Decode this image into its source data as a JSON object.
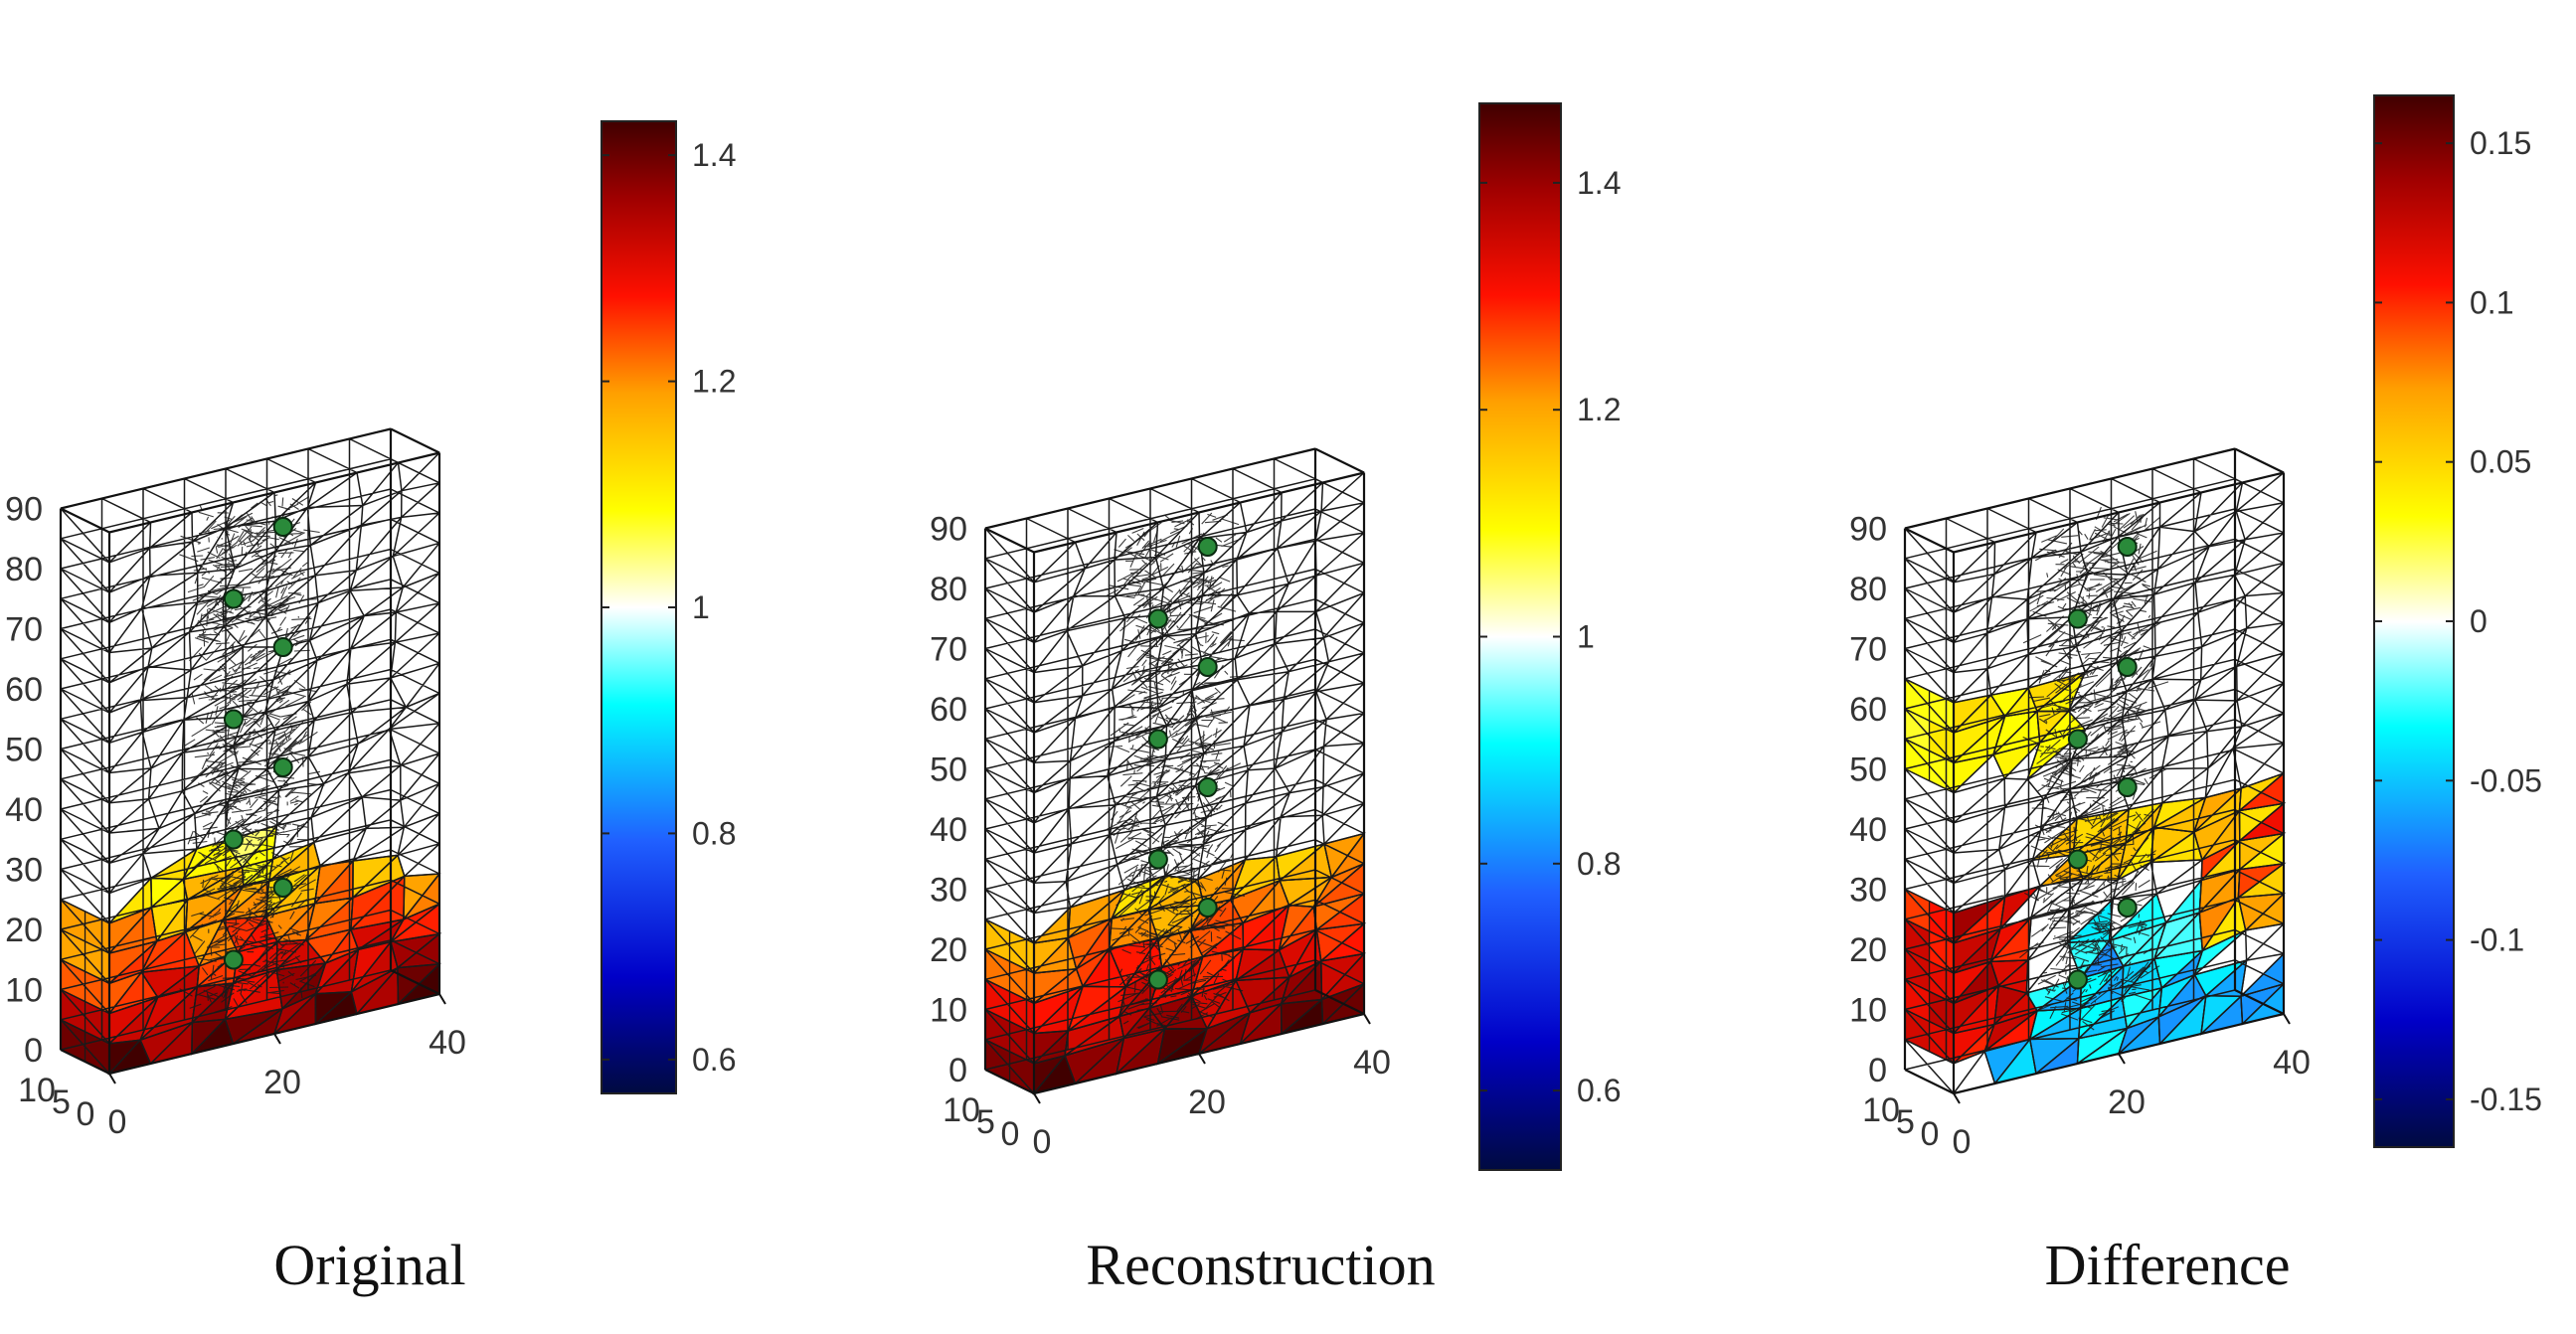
{
  "chart_data": [
    {
      "type": "heatmap",
      "subtype": "3d-tetrahedral-mesh",
      "title": "Original",
      "z_ticks": [
        "0",
        "10",
        "20",
        "30",
        "40",
        "50",
        "60",
        "70",
        "80",
        "90"
      ],
      "x_ticks": [
        "0",
        "20",
        "40"
      ],
      "y_ticks": [
        "0",
        "5",
        "10"
      ],
      "zlim": [
        0,
        90
      ],
      "xlim": [
        0,
        40
      ],
      "ylim": [
        0,
        10
      ],
      "colorbar": {
        "range": [
          0.57,
          1.43
        ],
        "ticks": [
          "0.6",
          "0.8",
          "1",
          "1.2",
          "1.4"
        ],
        "tick_values": [
          0.6,
          0.8,
          1.0,
          1.2,
          1.4
        ]
      },
      "inclusion_z": [
        11,
        21,
        31,
        41,
        51,
        61,
        71,
        81
      ],
      "grid": false
    },
    {
      "type": "heatmap",
      "subtype": "3d-tetrahedral-mesh",
      "title": "Reconstruction",
      "z_ticks": [
        "0",
        "10",
        "20",
        "30",
        "40",
        "50",
        "60",
        "70",
        "80",
        "90"
      ],
      "x_ticks": [
        "0",
        "20",
        "40"
      ],
      "y_ticks": [
        "0",
        "5",
        "10"
      ],
      "zlim": [
        0,
        90
      ],
      "xlim": [
        0,
        40
      ],
      "ylim": [
        0,
        10
      ],
      "colorbar": {
        "range": [
          0.53,
          1.47
        ],
        "ticks": [
          "0.6",
          "0.8",
          "1",
          "1.2",
          "1.4"
        ],
        "tick_values": [
          0.6,
          0.8,
          1.0,
          1.2,
          1.4
        ]
      },
      "inclusion_z": [
        11,
        21,
        31,
        41,
        51,
        61,
        71,
        81
      ],
      "grid": false
    },
    {
      "type": "heatmap",
      "subtype": "3d-tetrahedral-mesh",
      "title": "Difference",
      "z_ticks": [
        "0",
        "10",
        "20",
        "30",
        "40",
        "50",
        "60",
        "70",
        "80",
        "90"
      ],
      "x_ticks": [
        "0",
        "20",
        "40"
      ],
      "y_ticks": [
        "0",
        "5",
        "10"
      ],
      "zlim": [
        0,
        90
      ],
      "xlim": [
        0,
        40
      ],
      "ylim": [
        0,
        10
      ],
      "colorbar": {
        "range": [
          -0.165,
          0.165
        ],
        "ticks": [
          "-0.15",
          "-0.1",
          "-0.05",
          "0",
          "0.05",
          "0.1",
          "0.15"
        ],
        "tick_values": [
          -0.15,
          -0.1,
          -0.05,
          0,
          0.05,
          0.1,
          0.15
        ]
      },
      "inclusion_z": [
        11,
        21,
        31,
        41,
        51,
        61,
        71,
        81
      ],
      "grid": false
    }
  ],
  "colors": {
    "mesh_line": "#1a1a1a",
    "inclusion": "#2a8a3a",
    "colormap_stops": [
      "#000a40",
      "#0000c8",
      "#2060ff",
      "#00ffff",
      "#ffffff",
      "#ffff00",
      "#ffa000",
      "#ff1000",
      "#a00000",
      "#400000"
    ]
  }
}
